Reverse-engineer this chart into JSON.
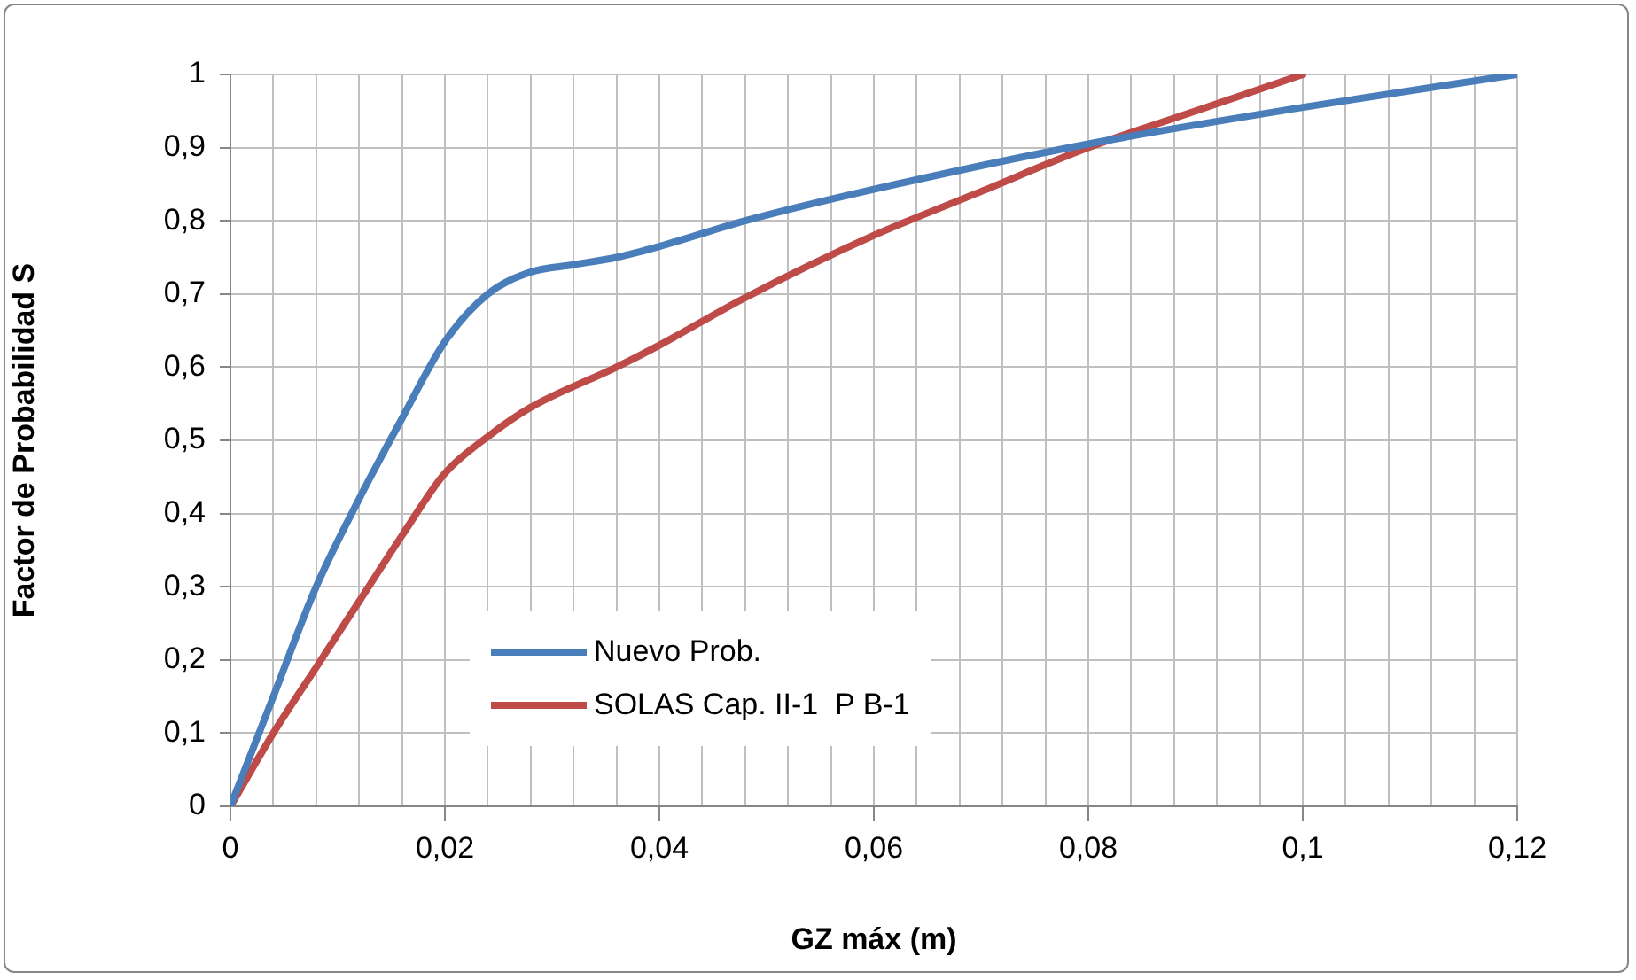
{
  "chart_data": {
    "type": "line",
    "xlabel": "GZ máx (m)",
    "ylabel": "Factor de Probabilidad S",
    "xlim": [
      0,
      0.12
    ],
    "xticks": [
      {
        "value": 0,
        "label": "0"
      },
      {
        "value": 0.004,
        "label": null
      },
      {
        "value": 0.008,
        "label": null
      },
      {
        "value": 0.012,
        "label": null
      },
      {
        "value": 0.016,
        "label": null
      },
      {
        "value": 0.02,
        "label": "0,02"
      },
      {
        "value": 0.024,
        "label": null
      },
      {
        "value": 0.028,
        "label": null
      },
      {
        "value": 0.032,
        "label": null
      },
      {
        "value": 0.036,
        "label": null
      },
      {
        "value": 0.04,
        "label": "0,04"
      },
      {
        "value": 0.044,
        "label": null
      },
      {
        "value": 0.048,
        "label": null
      },
      {
        "value": 0.052,
        "label": null
      },
      {
        "value": 0.056,
        "label": null
      },
      {
        "value": 0.06,
        "label": "0,06"
      },
      {
        "value": 0.064,
        "label": null
      },
      {
        "value": 0.068,
        "label": null
      },
      {
        "value": 0.072,
        "label": null
      },
      {
        "value": 0.076,
        "label": null
      },
      {
        "value": 0.08,
        "label": "0,08"
      },
      {
        "value": 0.084,
        "label": null
      },
      {
        "value": 0.088,
        "label": null
      },
      {
        "value": 0.092,
        "label": null
      },
      {
        "value": 0.096,
        "label": null
      },
      {
        "value": 0.1,
        "label": "0,1"
      },
      {
        "value": 0.104,
        "label": null
      },
      {
        "value": 0.108,
        "label": null
      },
      {
        "value": 0.112,
        "label": null
      },
      {
        "value": 0.116,
        "label": null
      },
      {
        "value": 0.12,
        "label": "0,12"
      }
    ],
    "ylim": [
      0,
      1
    ],
    "yticks": [
      0,
      {
        "value": 0.1,
        "label": "0,1"
      },
      {
        "value": 0.2,
        "label": "0,2"
      },
      {
        "value": 0.3,
        "label": "0,3"
      },
      {
        "value": 0.4,
        "label": "0,4"
      },
      {
        "value": 0.5,
        "label": "0,5"
      },
      {
        "value": 0.6,
        "label": "0,6"
      },
      {
        "value": 0.7,
        "label": "0,7"
      },
      {
        "value": 0.8,
        "label": "0,8"
      },
      {
        "value": 0.9,
        "label": "0,9"
      },
      1
    ],
    "grid": true,
    "legend": "bottom",
    "marker": "none",
    "line_style": "solid",
    "series": [
      {
        "name": "Nuevo Prob.",
        "color": "#4a7ebb",
        "x": [
          0,
          0.004,
          0.008,
          0.012,
          0.016,
          0.02,
          0.024,
          0.028,
          0.032,
          0.036,
          0.04,
          0.048,
          0.06,
          0.08,
          0.1,
          0.12
        ],
        "values": [
          0,
          0.15,
          0.3,
          0.42,
          0.53,
          0.635,
          0.7,
          0.73,
          0.74,
          0.75,
          0.765,
          0.8,
          0.843,
          0.905,
          0.955,
          1
        ]
      },
      {
        "name": "SOLAS Cap. II-1  P B-1",
        "color": "#be4b48",
        "x": [
          0,
          0.004,
          0.008,
          0.012,
          0.016,
          0.02,
          0.024,
          0.028,
          0.036,
          0.04,
          0.048,
          0.06,
          0.07,
          0.08,
          0.09,
          0.1
        ],
        "values": [
          0,
          0.1,
          0.19,
          0.28,
          0.37,
          0.455,
          0.505,
          0.545,
          0.6,
          0.63,
          0.695,
          0.78,
          0.84,
          0.9,
          0.95,
          1
        ]
      }
    ]
  }
}
